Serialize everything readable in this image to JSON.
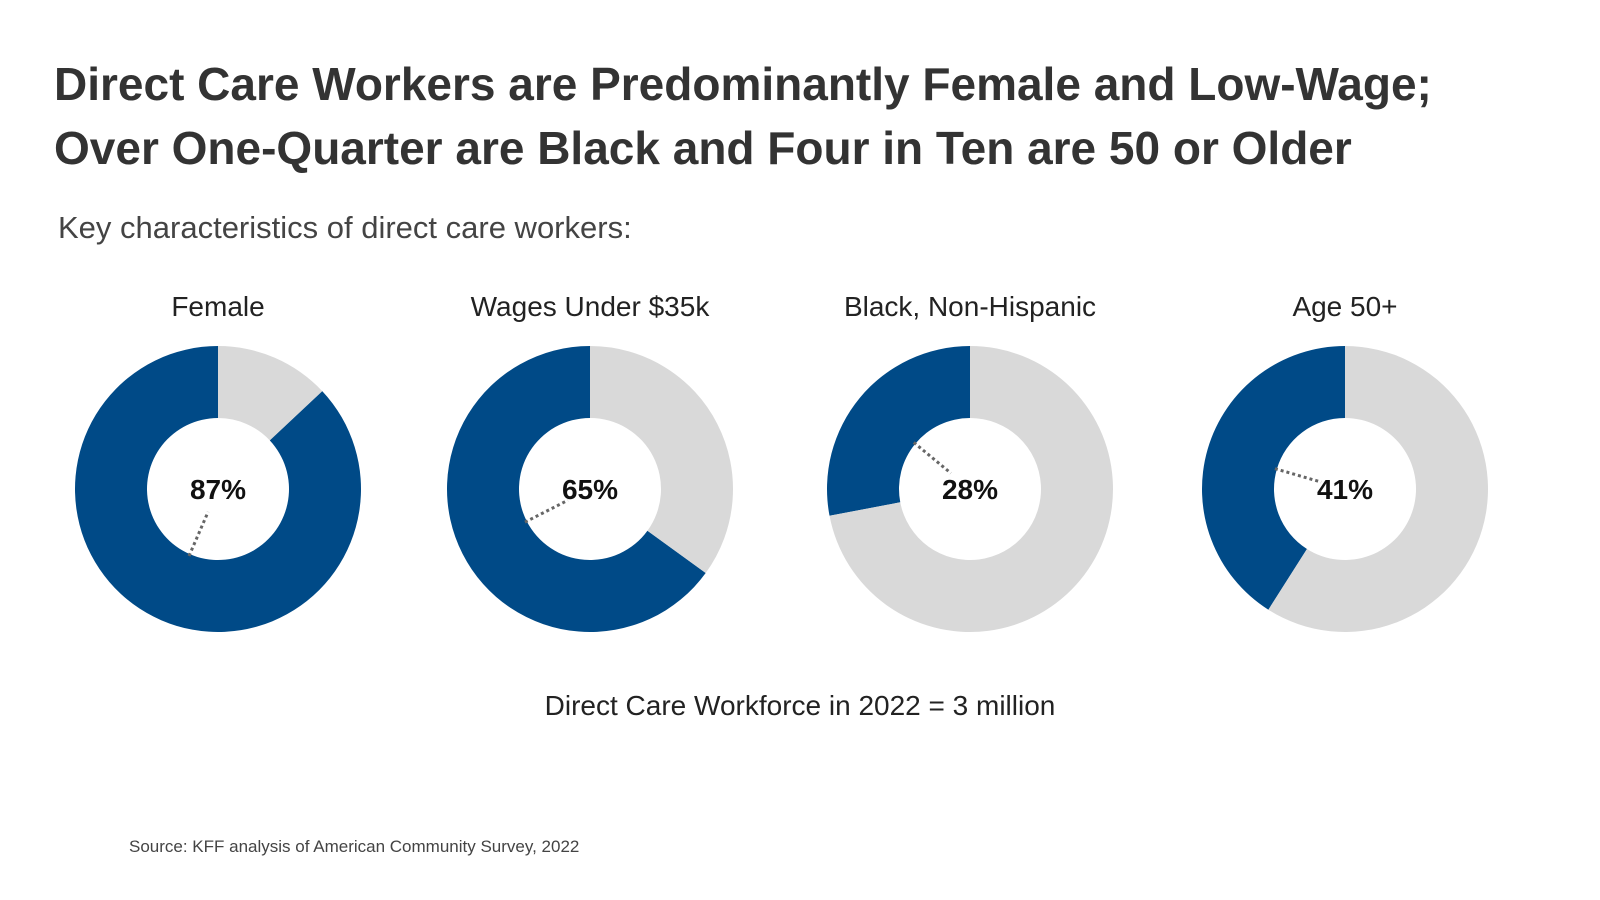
{
  "title_lines": [
    "Direct Care Workers are Predominantly Female and Low-Wage;",
    "Over One-Quarter are Black and Four in Ten are 50 or Older"
  ],
  "subtitle": "Key characteristics of direct care workers:",
  "footnote": "Direct Care Workforce in 2022 = 3 million",
  "source": "Source: KFF analysis of American Community Survey, 2022",
  "colors": {
    "highlight": "#004a87",
    "remainder": "#d9d9d9",
    "leader": "#666666"
  },
  "chart_data": [
    {
      "type": "pie",
      "title": "Female",
      "values": [
        87,
        13
      ],
      "value_label": "87%"
    },
    {
      "type": "pie",
      "title": "Wages Under $35k",
      "values": [
        65,
        35
      ],
      "value_label": "65%"
    },
    {
      "type": "pie",
      "title": "Black, Non-Hispanic",
      "values": [
        28,
        72
      ],
      "value_label": "28%"
    },
    {
      "type": "pie",
      "title": "Age 50+",
      "values": [
        41,
        59
      ],
      "value_label": "41%"
    }
  ]
}
